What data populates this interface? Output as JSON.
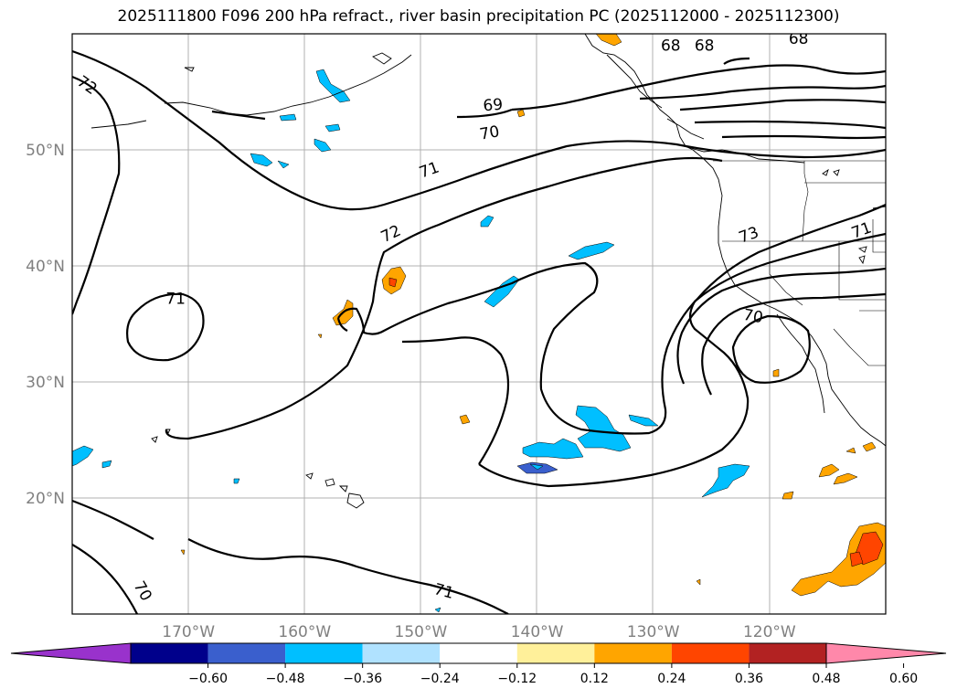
{
  "title": "2025111800 F096 200 hPa refract., river basin precipitation PC (2025112000 - 2025112300)",
  "map": {
    "lon_range": [
      -180,
      -110
    ],
    "lat_range": [
      10,
      60
    ],
    "lat_labels": [
      {
        "lat": 50,
        "text": "50°N"
      },
      {
        "lat": 40,
        "text": "40°N"
      },
      {
        "lat": 30,
        "text": "30°N"
      },
      {
        "lat": 20,
        "text": "20°N"
      }
    ],
    "lon_labels": [
      {
        "lon": -170,
        "text": "170°W"
      },
      {
        "lon": -160,
        "text": "160°W"
      },
      {
        "lon": -150,
        "text": "150°W"
      },
      {
        "lon": -140,
        "text": "140°W"
      },
      {
        "lon": -130,
        "text": "130°W"
      },
      {
        "lon": -120,
        "text": "120°W"
      }
    ],
    "contour_labels": [
      {
        "text": "72",
        "lon": -178.7,
        "lat": 55.6,
        "rot": 35
      },
      {
        "text": "71",
        "lon": -171.1,
        "lat": 37.2,
        "rot": 0
      },
      {
        "text": "70",
        "lon": -173.9,
        "lat": 12.0,
        "rot": 60
      },
      {
        "text": "72",
        "lon": -152.6,
        "lat": 42.8,
        "rot": -25
      },
      {
        "text": "71",
        "lon": -149.3,
        "lat": 48.3,
        "rot": -20
      },
      {
        "text": "70",
        "lon": -144.1,
        "lat": 51.5,
        "rot": -10
      },
      {
        "text": "69",
        "lon": -143.8,
        "lat": 53.9,
        "rot": -5
      },
      {
        "text": "68",
        "lon": -128.5,
        "lat": 59.0,
        "rot": 0
      },
      {
        "text": "68",
        "lon": -125.6,
        "lat": 59.0,
        "rot": 0
      },
      {
        "text": "68",
        "lon": -117.5,
        "lat": 59.6,
        "rot": 0
      },
      {
        "text": "73",
        "lon": -121.8,
        "lat": 42.7,
        "rot": -20
      },
      {
        "text": "71",
        "lon": -112.1,
        "lat": 43.1,
        "rot": -20
      },
      {
        "text": "70",
        "lon": -121.4,
        "lat": 35.7,
        "rot": 10
      },
      {
        "text": "71",
        "lon": -148.0,
        "lat": 12.0,
        "rot": 15
      }
    ]
  },
  "colorbar": {
    "colors": [
      "#9932cc",
      "#00008b",
      "#3a5fcd",
      "#00bfff",
      "#b0e2ff",
      "#ffffff",
      "#fff09a",
      "#ffa500",
      "#ff4500",
      "#b22222",
      "#ff88aa"
    ],
    "tick_labels": [
      "−0.60",
      "−0.48",
      "−0.36",
      "−0.24",
      "−0.12",
      "0.12",
      "0.24",
      "0.36",
      "0.48",
      "0.60"
    ]
  }
}
